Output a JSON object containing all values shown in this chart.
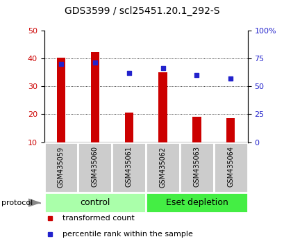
{
  "title": "GDS3599 / scl25451.20.1_292-S",
  "samples": [
    "GSM435059",
    "GSM435060",
    "GSM435061",
    "GSM435062",
    "GSM435063",
    "GSM435064"
  ],
  "bar_values": [
    40.2,
    42.2,
    20.5,
    35.0,
    19.0,
    18.5
  ],
  "bar_color": "#cc0000",
  "dot_values": [
    70,
    71,
    62,
    66,
    60,
    57
  ],
  "dot_color": "#2222cc",
  "ylim_left": [
    10,
    50
  ],
  "ylim_right": [
    0,
    100
  ],
  "yticks_left": [
    10,
    20,
    30,
    40,
    50
  ],
  "yticks_right": [
    0,
    25,
    50,
    75,
    100
  ],
  "yticklabels_right": [
    "0",
    "25",
    "50",
    "75",
    "100%"
  ],
  "grid_lines": [
    20,
    30,
    40
  ],
  "groups": [
    {
      "label": "control",
      "indices": [
        0,
        1,
        2
      ],
      "color": "#aaffaa"
    },
    {
      "label": "Eset depletion",
      "indices": [
        3,
        4,
        5
      ],
      "color": "#44ee44"
    }
  ],
  "protocol_label": "protocol",
  "legend_items": [
    {
      "label": "transformed count",
      "color": "#cc0000"
    },
    {
      "label": "percentile rank within the sample",
      "color": "#2222cc"
    }
  ],
  "label_area_color": "#cccccc",
  "bar_width": 0.25,
  "title_fontsize": 10,
  "tick_fontsize": 8,
  "label_fontsize": 8
}
